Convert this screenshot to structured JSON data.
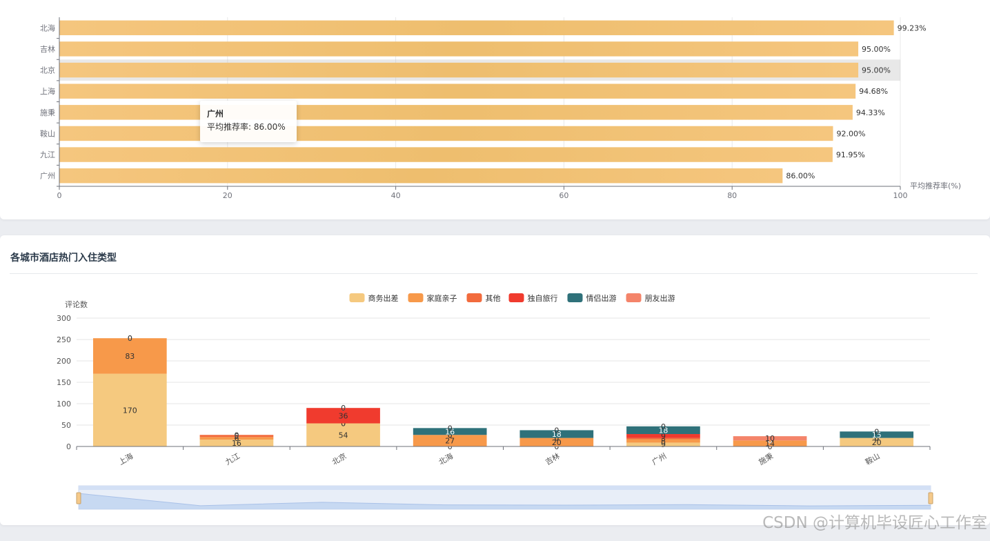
{
  "colors": {
    "hbar": "#f5c67e",
    "hbar_dark": "#eebe6e",
    "series": [
      "#f5c97f",
      "#f7994a",
      "#f26b3d",
      "#f03b2e",
      "#2f717a",
      "#f4846a"
    ]
  },
  "top_chart": {
    "tooltip": {
      "title": "广州",
      "label": "平均推荐率: 86.00%"
    }
  },
  "bottom_card": {
    "title": "各城市酒店热门入住类型"
  },
  "watermark": "CSDN @计算机毕设匠心工作室",
  "chart_data": [
    {
      "type": "bar",
      "orientation": "horizontal",
      "categories": [
        "广州",
        "九江",
        "鞍山",
        "施秉",
        "上海",
        "北京",
        "吉林",
        "北海"
      ],
      "values": [
        86.0,
        91.95,
        92.0,
        94.33,
        94.68,
        95.0,
        95.0,
        99.23
      ],
      "value_labels": [
        "86.00%",
        "91.95%",
        "92.00%",
        "94.33%",
        "94.68%",
        "95.00%",
        "95.00%",
        "99.23%"
      ],
      "xlabel": "平均推荐率(%)",
      "xlim": [
        0,
        100
      ],
      "x_ticks": [
        "0",
        "20",
        "40",
        "60",
        "80",
        "100"
      ],
      "grid": true,
      "highlighted_category": "北京"
    },
    {
      "type": "bar",
      "stacked": true,
      "title": "各城市酒店热门入住类型",
      "ylabel": "评论数",
      "ylim": [
        0,
        300
      ],
      "y_ticks": [
        "0",
        "50",
        "100",
        "150",
        "200",
        "250",
        "300"
      ],
      "legend_position": "top-center",
      "categories": [
        "上海",
        "九江",
        "北京",
        "北海",
        "吉林",
        "广州",
        "施秉",
        "鞍山"
      ],
      "series": [
        {
          "name": "商务出差",
          "values": [
            170,
            16,
            54,
            0,
            0,
            9,
            0,
            20
          ]
        },
        {
          "name": "家庭亲子",
          "values": [
            83,
            6,
            0,
            27,
            20,
            8,
            14,
            0
          ]
        },
        {
          "name": "其他",
          "values": [
            0,
            5,
            0,
            0,
            0,
            3,
            0,
            0
          ]
        },
        {
          "name": "独自旅行",
          "values": [
            0,
            0,
            36,
            0,
            0,
            9,
            0,
            0
          ]
        },
        {
          "name": "情侣出游",
          "values": [
            0,
            0,
            0,
            16,
            18,
            18,
            0,
            15
          ]
        },
        {
          "name": "朋友出游",
          "values": [
            0,
            0,
            0,
            0,
            0,
            0,
            10,
            0
          ]
        }
      ],
      "grid": true,
      "data_zoom": true
    }
  ]
}
